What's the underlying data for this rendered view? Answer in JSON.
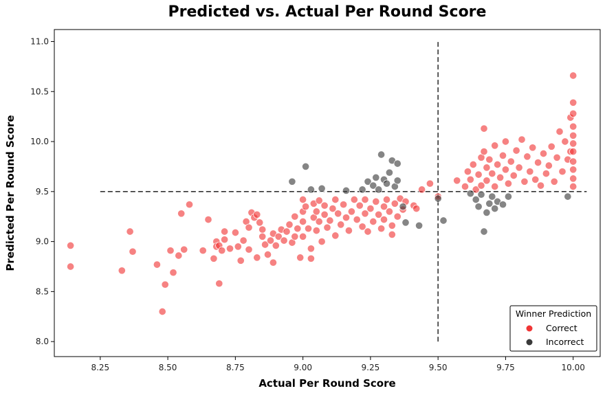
{
  "chart_data": {
    "type": "scatter",
    "title": "Predicted vs. Actual Per Round Score",
    "xlabel": "Actual Per Round Score",
    "ylabel": "Predicted Per Round Score",
    "xlim": [
      8.08,
      10.1
    ],
    "ylim": [
      7.85,
      11.12
    ],
    "xticks": [
      "8.25",
      "8.50",
      "8.75",
      "9.00",
      "9.25",
      "9.50",
      "9.75",
      "10.00"
    ],
    "yticks": [
      "8.0",
      "8.5",
      "9.0",
      "9.5",
      "10.0",
      "10.5",
      "11.0"
    ],
    "grid": false,
    "reference_lines": {
      "horizontal": {
        "y": 9.5,
        "x_from": 8.25,
        "x_to": 10.05,
        "style": "dashed"
      },
      "vertical": {
        "x": 9.5,
        "y_from": 8.0,
        "y_to": 11.0,
        "style": "dashed"
      }
    },
    "legend": {
      "title": "Winner Prediction",
      "placement": "bottom-right",
      "entries": [
        "Correct",
        "Incorrect"
      ]
    },
    "colors": {
      "Correct": "#f03535",
      "Incorrect": "#3a3a3a"
    },
    "series": [
      {
        "name": "Correct",
        "points": [
          [
            8.14,
            8.96
          ],
          [
            8.14,
            8.75
          ],
          [
            8.33,
            8.71
          ],
          [
            8.36,
            9.1
          ],
          [
            8.37,
            8.9
          ],
          [
            8.46,
            8.77
          ],
          [
            8.48,
            8.3
          ],
          [
            8.49,
            8.57
          ],
          [
            8.51,
            8.91
          ],
          [
            8.52,
            8.69
          ],
          [
            8.54,
            8.86
          ],
          [
            8.55,
            9.28
          ],
          [
            8.56,
            8.92
          ],
          [
            8.58,
            9.37
          ],
          [
            8.63,
            8.91
          ],
          [
            8.65,
            9.22
          ],
          [
            8.67,
            8.83
          ],
          [
            8.68,
            9.0
          ],
          [
            8.68,
            8.95
          ],
          [
            8.69,
            8.58
          ],
          [
            8.69,
            8.96
          ],
          [
            8.7,
            8.91
          ],
          [
            8.71,
            9.02
          ],
          [
            8.71,
            9.1
          ],
          [
            8.73,
            8.93
          ],
          [
            8.75,
            9.09
          ],
          [
            8.76,
            8.95
          ],
          [
            8.77,
            8.81
          ],
          [
            8.78,
            9.01
          ],
          [
            8.79,
            9.2
          ],
          [
            8.8,
            9.14
          ],
          [
            8.8,
            8.92
          ],
          [
            8.81,
            9.29
          ],
          [
            8.82,
            9.24
          ],
          [
            8.83,
            8.84
          ],
          [
            8.83,
            9.27
          ],
          [
            8.84,
            9.19
          ],
          [
            8.85,
            9.12
          ],
          [
            8.85,
            9.05
          ],
          [
            8.86,
            8.97
          ],
          [
            8.87,
            8.87
          ],
          [
            8.88,
            9.01
          ],
          [
            8.89,
            8.79
          ],
          [
            8.89,
            9.08
          ],
          [
            8.9,
            8.96
          ],
          [
            8.91,
            9.05
          ],
          [
            8.92,
            9.12
          ],
          [
            8.93,
            9.01
          ],
          [
            8.94,
            9.1
          ],
          [
            8.95,
            9.17
          ],
          [
            8.96,
            8.99
          ],
          [
            8.97,
            9.25
          ],
          [
            8.97,
            9.05
          ],
          [
            8.98,
            9.13
          ],
          [
            8.99,
            8.84
          ],
          [
            9.0,
            9.42
          ],
          [
            9.0,
            9.3
          ],
          [
            9.0,
            9.2
          ],
          [
            9.0,
            9.05
          ],
          [
            9.01,
            9.35
          ],
          [
            9.02,
            9.13
          ],
          [
            9.03,
            8.93
          ],
          [
            9.03,
            8.83
          ],
          [
            9.04,
            9.24
          ],
          [
            9.04,
            9.38
          ],
          [
            9.05,
            9.11
          ],
          [
            9.05,
            9.3
          ],
          [
            9.06,
            9.2
          ],
          [
            9.06,
            9.41
          ],
          [
            9.07,
            9.0
          ],
          [
            9.08,
            9.27
          ],
          [
            9.08,
            9.36
          ],
          [
            9.09,
            9.14
          ],
          [
            9.1,
            9.21
          ],
          [
            9.11,
            9.33
          ],
          [
            9.12,
            9.06
          ],
          [
            9.12,
            9.42
          ],
          [
            9.13,
            9.28
          ],
          [
            9.14,
            9.17
          ],
          [
            9.15,
            9.37
          ],
          [
            9.16,
            9.24
          ],
          [
            9.17,
            9.11
          ],
          [
            9.18,
            9.3
          ],
          [
            9.19,
            9.42
          ],
          [
            9.2,
            9.22
          ],
          [
            9.21,
            9.36
          ],
          [
            9.22,
            9.15
          ],
          [
            9.23,
            9.28
          ],
          [
            9.23,
            9.42
          ],
          [
            9.24,
            9.1
          ],
          [
            9.25,
            9.33
          ],
          [
            9.26,
            9.2
          ],
          [
            9.27,
            9.4
          ],
          [
            9.28,
            9.27
          ],
          [
            9.29,
            9.13
          ],
          [
            9.3,
            9.35
          ],
          [
            9.3,
            9.22
          ],
          [
            9.31,
            9.42
          ],
          [
            9.32,
            9.3
          ],
          [
            9.33,
            9.16
          ],
          [
            9.33,
            9.07
          ],
          [
            9.34,
            9.38
          ],
          [
            9.35,
            9.25
          ],
          [
            9.36,
            9.43
          ],
          [
            9.37,
            9.32
          ],
          [
            9.38,
            9.4
          ],
          [
            9.41,
            9.36
          ],
          [
            9.42,
            9.33
          ],
          [
            9.44,
            9.52
          ],
          [
            9.47,
            9.58
          ],
          [
            9.5,
            9.45
          ],
          [
            9.57,
            9.61
          ],
          [
            9.6,
            9.55
          ],
          [
            9.61,
            9.7
          ],
          [
            9.62,
            9.62
          ],
          [
            9.63,
            9.77
          ],
          [
            9.64,
            9.52
          ],
          [
            9.65,
            9.67
          ],
          [
            9.66,
            9.84
          ],
          [
            9.66,
            9.56
          ],
          [
            9.67,
            9.9
          ],
          [
            9.67,
            10.13
          ],
          [
            9.68,
            9.74
          ],
          [
            9.68,
            9.61
          ],
          [
            9.69,
            9.82
          ],
          [
            9.7,
            9.68
          ],
          [
            9.71,
            9.55
          ],
          [
            9.71,
            9.96
          ],
          [
            9.72,
            9.77
          ],
          [
            9.73,
            9.64
          ],
          [
            9.74,
            9.86
          ],
          [
            9.75,
            9.72
          ],
          [
            9.75,
            10.0
          ],
          [
            9.76,
            9.58
          ],
          [
            9.77,
            9.8
          ],
          [
            9.78,
            9.66
          ],
          [
            9.79,
            9.91
          ],
          [
            9.8,
            9.74
          ],
          [
            9.81,
            10.02
          ],
          [
            9.82,
            9.6
          ],
          [
            9.83,
            9.85
          ],
          [
            9.84,
            9.7
          ],
          [
            9.85,
            9.94
          ],
          [
            9.86,
            9.62
          ],
          [
            9.87,
            9.79
          ],
          [
            9.88,
            9.56
          ],
          [
            9.89,
            9.88
          ],
          [
            9.9,
            9.68
          ],
          [
            9.91,
            9.76
          ],
          [
            9.92,
            9.95
          ],
          [
            9.93,
            9.6
          ],
          [
            9.94,
            9.84
          ],
          [
            9.95,
            10.1
          ],
          [
            9.96,
            9.7
          ],
          [
            9.97,
            10.0
          ],
          [
            9.98,
            9.82
          ],
          [
            9.99,
            10.24
          ],
          [
            9.99,
            9.9
          ],
          [
            10.0,
            10.66
          ],
          [
            10.0,
            10.39
          ],
          [
            10.0,
            10.28
          ],
          [
            10.0,
            10.15
          ],
          [
            10.0,
            10.06
          ],
          [
            10.0,
            9.98
          ],
          [
            10.0,
            9.9
          ],
          [
            10.0,
            9.8
          ],
          [
            10.0,
            9.72
          ],
          [
            10.0,
            9.63
          ],
          [
            10.0,
            9.55
          ]
        ]
      },
      {
        "name": "Incorrect",
        "points": [
          [
            8.96,
            9.6
          ],
          [
            9.01,
            9.75
          ],
          [
            9.03,
            9.52
          ],
          [
            9.07,
            9.53
          ],
          [
            9.16,
            9.51
          ],
          [
            9.22,
            9.52
          ],
          [
            9.24,
            9.6
          ],
          [
            9.26,
            9.56
          ],
          [
            9.27,
            9.64
          ],
          [
            9.28,
            9.52
          ],
          [
            9.29,
            9.87
          ],
          [
            9.3,
            9.62
          ],
          [
            9.31,
            9.58
          ],
          [
            9.32,
            9.69
          ],
          [
            9.33,
            9.81
          ],
          [
            9.34,
            9.55
          ],
          [
            9.35,
            9.78
          ],
          [
            9.35,
            9.61
          ],
          [
            9.37,
            9.35
          ],
          [
            9.38,
            9.19
          ],
          [
            9.43,
            9.16
          ],
          [
            9.5,
            9.43
          ],
          [
            9.52,
            9.21
          ],
          [
            9.62,
            9.48
          ],
          [
            9.64,
            9.42
          ],
          [
            9.65,
            9.35
          ],
          [
            9.66,
            9.47
          ],
          [
            9.67,
            9.1
          ],
          [
            9.68,
            9.29
          ],
          [
            9.69,
            9.38
          ],
          [
            9.7,
            9.45
          ],
          [
            9.71,
            9.33
          ],
          [
            9.72,
            9.4
          ],
          [
            9.74,
            9.37
          ],
          [
            9.76,
            9.45
          ],
          [
            9.98,
            9.45
          ]
        ]
      }
    ]
  }
}
